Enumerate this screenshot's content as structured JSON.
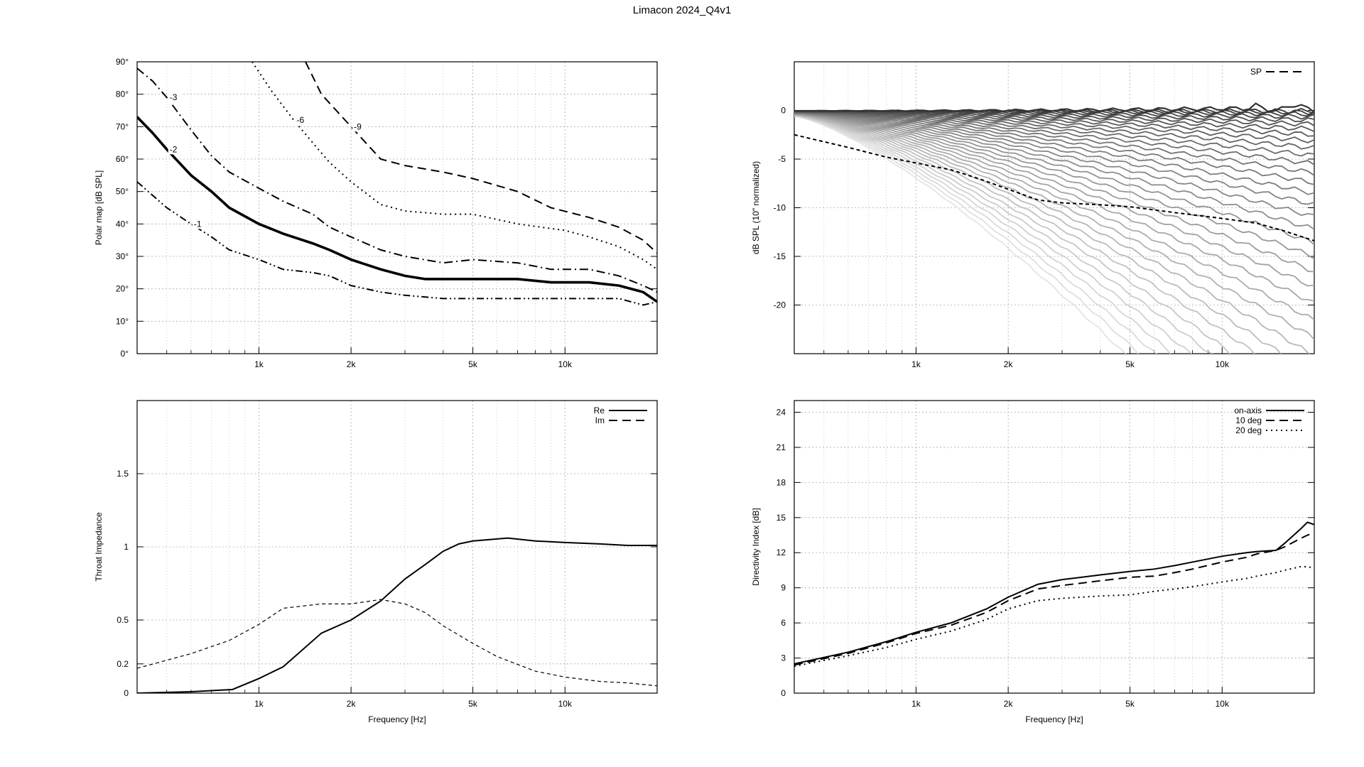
{
  "title": "Limacon 2024_Q4v1",
  "chart_data": [
    {
      "id": "polar",
      "type": "line",
      "subtype": "polar-map-contours",
      "xscale": "log",
      "xlim": [
        400,
        20000
      ],
      "ylim": [
        0,
        90
      ],
      "xticks": [
        1000,
        2000,
        5000,
        10000
      ],
      "xticklabels": [
        "1k",
        "2k",
        "5k",
        "10k"
      ],
      "yticks": [
        0,
        10,
        20,
        30,
        40,
        50,
        60,
        70,
        80,
        90
      ],
      "yticklabels": [
        "0°",
        "10°",
        "20°",
        "30°",
        "40°",
        "50°",
        "60°",
        "70°",
        "80°",
        "90°"
      ],
      "ylabel": "Polar map [dB SPL]",
      "xlabel": "",
      "grid": true,
      "contours": [
        {
          "label": "-1",
          "style": "dash-dot-dot",
          "x": [
            400,
            500,
            600,
            700,
            800,
            1000,
            1200,
            1500,
            1700,
            2000,
            2500,
            3000,
            4000,
            5000,
            7000,
            10000,
            12000,
            15000,
            18000,
            20000
          ],
          "y": [
            53,
            45,
            40,
            36,
            32,
            29,
            26,
            25,
            24,
            21,
            19,
            18,
            17,
            17,
            17,
            17,
            17,
            17,
            15,
            16
          ]
        },
        {
          "label": "-2",
          "style": "thick",
          "x": [
            400,
            450,
            500,
            600,
            700,
            800,
            1000,
            1200,
            1500,
            1700,
            2000,
            2500,
            3000,
            3500,
            4000,
            5000,
            7000,
            9000,
            12000,
            15000,
            18000,
            20000
          ],
          "y": [
            73,
            68,
            63,
            55,
            50,
            45,
            40,
            37,
            34,
            32,
            29,
            26,
            24,
            23,
            23,
            23,
            23,
            22,
            22,
            21,
            19,
            16
          ]
        },
        {
          "label": "-3",
          "style": "dash-dot",
          "x": [
            400,
            450,
            500,
            600,
            700,
            800,
            1000,
            1200,
            1500,
            1700,
            2000,
            2500,
            3000,
            4000,
            5000,
            7000,
            9000,
            12000,
            15000,
            18000,
            20000
          ],
          "y": [
            88,
            84,
            79,
            69,
            61,
            56,
            51,
            47,
            43,
            39,
            36,
            32,
            30,
            28,
            29,
            28,
            26,
            26,
            24,
            21,
            19
          ]
        },
        {
          "label": "-6",
          "style": "dotted",
          "x": [
            950,
            1100,
            1300,
            1500,
            1700,
            2000,
            2500,
            3000,
            4000,
            5000,
            7000,
            10000,
            12000,
            15000,
            18000,
            20000
          ],
          "y": [
            90,
            81,
            72,
            65,
            59,
            53,
            46,
            44,
            43,
            43,
            40,
            38,
            36,
            33,
            29,
            26
          ]
        },
        {
          "label": "-9",
          "style": "dashed",
          "x": [
            1420,
            1600,
            2000,
            2500,
            3000,
            4000,
            5000,
            7000,
            9000,
            12000,
            15000,
            18000,
            20000
          ],
          "y": [
            90,
            80,
            70,
            60,
            58,
            56,
            54,
            50,
            45,
            42,
            39,
            35,
            31
          ]
        }
      ]
    },
    {
      "id": "spl",
      "type": "line",
      "subtype": "normalized-off-axis-family",
      "xscale": "log",
      "xlim": [
        400,
        20000
      ],
      "ylim": [
        -25,
        5
      ],
      "xticks": [
        1000,
        2000,
        5000,
        10000
      ],
      "xticklabels": [
        "1k",
        "2k",
        "5k",
        "10k"
      ],
      "yticks": [
        0,
        -5,
        -10,
        -15,
        -20
      ],
      "yticklabels": [
        "0",
        "-5",
        "-10",
        "-15",
        "-20"
      ],
      "ylabel": "dB SPL (10\" normalized)",
      "xlabel": "",
      "grid": true,
      "curve_count": 36,
      "curve_color_dark": "#333333",
      "curve_color_light": "#e4e4e4",
      "legend": [
        "SP"
      ],
      "legend_position": "top-right",
      "sound_power": {
        "name": "SP",
        "x": [
          400,
          600,
          800,
          1000,
          1300,
          1600,
          2000,
          2500,
          3000,
          4000,
          5000,
          7000,
          10000,
          13000,
          16000,
          20000
        ],
        "y": [
          -2.5,
          -3.8,
          -4.8,
          -5.4,
          -6.1,
          -7.0,
          -8.1,
          -9.2,
          -9.5,
          -9.7,
          -9.9,
          -10.5,
          -11.1,
          -11.6,
          -12.4,
          -13.4
        ]
      }
    },
    {
      "id": "impedance",
      "type": "line",
      "xscale": "log",
      "xlim": [
        400,
        20000
      ],
      "ylim": [
        0,
        2
      ],
      "xticks": [
        1000,
        2000,
        5000,
        10000
      ],
      "xticklabels": [
        "1k",
        "2k",
        "5k",
        "10k"
      ],
      "yticks": [
        0,
        0.2,
        0.5,
        1,
        1.5
      ],
      "yticklabels": [
        "0",
        "0.2",
        "0.5",
        "1",
        "1.5"
      ],
      "ylabel": "Throat Impedance",
      "xlabel": "Frequency [Hz]",
      "grid": true,
      "legend_position": "top-right",
      "series": [
        {
          "name": "Re",
          "style": "solid",
          "x": [
            400,
            600,
            820,
            1000,
            1200,
            1600,
            2000,
            2500,
            3000,
            3500,
            4000,
            4500,
            5000,
            6500,
            8000,
            10000,
            13000,
            16000,
            20000
          ],
          "y": [
            0.0,
            0.01,
            0.025,
            0.1,
            0.18,
            0.41,
            0.5,
            0.63,
            0.78,
            0.88,
            0.97,
            1.02,
            1.04,
            1.06,
            1.04,
            1.03,
            1.02,
            1.01,
            1.01
          ]
        },
        {
          "name": "Im",
          "style": "dashed",
          "x": [
            400,
            600,
            800,
            1000,
            1200,
            1600,
            2000,
            2500,
            3000,
            3500,
            4000,
            5000,
            6000,
            8000,
            10000,
            13000,
            16000,
            20000
          ],
          "y": [
            0.17,
            0.27,
            0.36,
            0.47,
            0.58,
            0.61,
            0.61,
            0.64,
            0.61,
            0.55,
            0.46,
            0.34,
            0.25,
            0.15,
            0.11,
            0.08,
            0.07,
            0.05
          ]
        }
      ]
    },
    {
      "id": "di",
      "type": "line",
      "xscale": "log",
      "xlim": [
        400,
        20000
      ],
      "ylim": [
        0,
        25
      ],
      "xticks": [
        1000,
        2000,
        5000,
        10000
      ],
      "xticklabels": [
        "1k",
        "2k",
        "5k",
        "10k"
      ],
      "yticks": [
        0,
        3,
        6,
        9,
        12,
        15,
        18,
        21,
        24
      ],
      "yticklabels": [
        "0",
        "3",
        "6",
        "9",
        "12",
        "15",
        "18",
        "21",
        "24"
      ],
      "ylabel": "Directivity Index [dB]",
      "xlabel": "Frequency [Hz]",
      "grid": true,
      "legend_position": "top-right",
      "series": [
        {
          "name": "on-axis",
          "style": "solid",
          "x": [
            400,
            600,
            800,
            1000,
            1300,
            1700,
            2000,
            2500,
            3000,
            4000,
            5000,
            6000,
            7000,
            8000,
            10000,
            12000,
            13000,
            15000,
            16000,
            18000,
            19000,
            20000
          ],
          "y": [
            2.5,
            3.5,
            4.4,
            5.2,
            6.0,
            7.2,
            8.2,
            9.3,
            9.7,
            10.1,
            10.4,
            10.6,
            10.9,
            11.2,
            11.7,
            12.0,
            12.1,
            12.2,
            12.8,
            14.0,
            14.6,
            14.4
          ]
        },
        {
          "name": "10 deg",
          "style": "dashed",
          "x": [
            400,
            600,
            800,
            1000,
            1300,
            1700,
            2000,
            2500,
            3000,
            4000,
            5000,
            6000,
            7000,
            8000,
            10000,
            12000,
            13000,
            15000,
            16000,
            18000,
            19000,
            20000
          ],
          "y": [
            2.4,
            3.4,
            4.3,
            5.1,
            5.8,
            6.9,
            7.9,
            8.9,
            9.2,
            9.6,
            9.9,
            10.0,
            10.3,
            10.6,
            11.2,
            11.6,
            11.9,
            12.2,
            12.5,
            13.2,
            13.5,
            13.7
          ]
        },
        {
          "name": "20 deg",
          "style": "dotted",
          "x": [
            400,
            600,
            800,
            1000,
            1300,
            1700,
            2000,
            2500,
            3000,
            4000,
            5000,
            6000,
            7000,
            8000,
            10000,
            12000,
            13000,
            15000,
            16000,
            18000,
            19000,
            20000
          ],
          "y": [
            2.3,
            3.2,
            3.9,
            4.6,
            5.3,
            6.3,
            7.2,
            7.9,
            8.1,
            8.3,
            8.4,
            8.7,
            8.9,
            9.1,
            9.5,
            9.8,
            10.0,
            10.3,
            10.5,
            10.8,
            10.8,
            10.7
          ]
        }
      ]
    }
  ]
}
